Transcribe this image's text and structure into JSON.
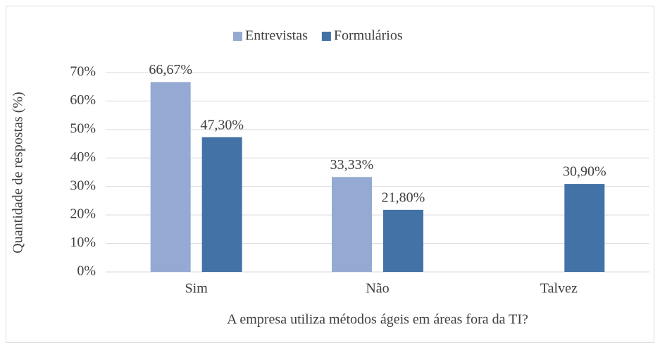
{
  "chart_data": {
    "type": "bar",
    "x_label": "A empresa utiliza métodos ágeis em áreas fora da TI?",
    "y_label": "Quantidade de respostas (%)",
    "categories": [
      "Sim",
      "Não",
      "Talvez"
    ],
    "series": [
      {
        "name": "Entrevistas",
        "color": "#95aad3",
        "values": [
          66.67,
          33.33,
          null
        ],
        "value_labels": [
          "66,67%",
          "33,33%",
          null
        ]
      },
      {
        "name": "Formulários",
        "color": "#4372a7",
        "values": [
          47.3,
          21.8,
          30.9
        ],
        "value_labels": [
          "47,30%",
          "21,80%",
          "30,90%"
        ]
      }
    ],
    "ylim": [
      0,
      70
    ],
    "yticks": [
      {
        "value": 0,
        "label": "0%"
      },
      {
        "value": 10,
        "label": "10%"
      },
      {
        "value": 20,
        "label": "20%"
      },
      {
        "value": 30,
        "label": "30%"
      },
      {
        "value": 40,
        "label": "40%"
      },
      {
        "value": 50,
        "label": "50%"
      },
      {
        "value": 60,
        "label": "60%"
      },
      {
        "value": 70,
        "label": "70%"
      }
    ],
    "grid": true,
    "legend": "top"
  }
}
